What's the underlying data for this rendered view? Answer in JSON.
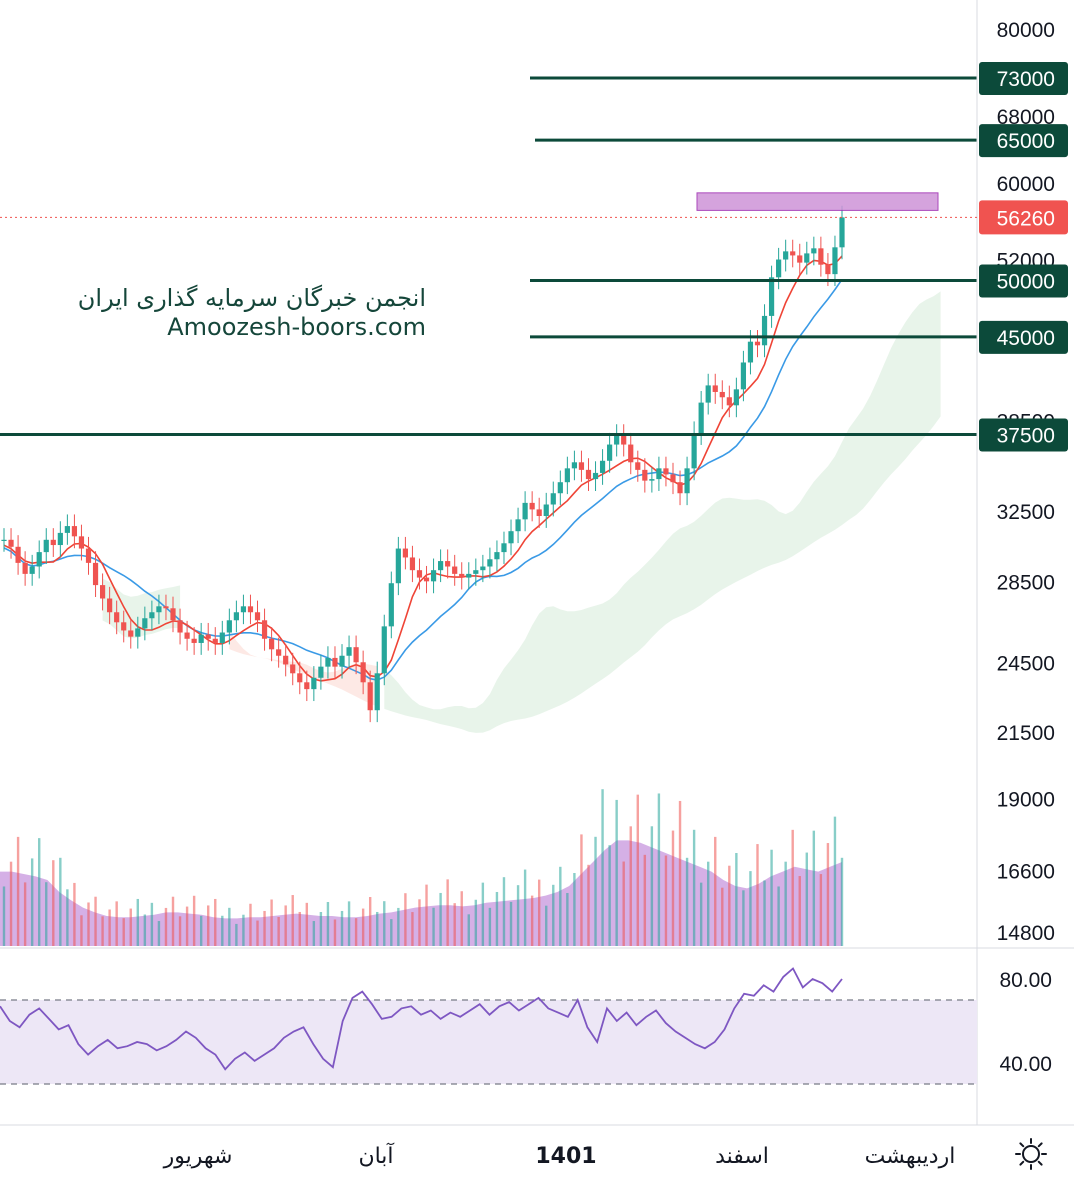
{
  "watermark": {
    "line1": "انجمن خبرگان سرمایه گذاری ایران",
    "line2": "Amoozesh-boors.com"
  },
  "colors": {
    "level_line": "#0c4a3a",
    "price_label": "#f05350",
    "bull": "#26a69a",
    "bear": "#ef5350",
    "ma_fast": "#ef4436",
    "ma_slow": "#3a9ae6",
    "volume_area": "#b36fd1",
    "rsi_line": "#7e57c2",
    "rsi_band": "#ede7f6",
    "cloud_green": "#e6f3e8",
    "cloud_red": "#fde5e1",
    "zone": "#ce93d8"
  },
  "chart_data": {
    "type": "candlestick",
    "price_axis": {
      "scale": "log",
      "ticks": [
        "80000",
        "68000",
        "60000",
        "52000",
        "38500",
        "32500",
        "28500",
        "24500",
        "21500",
        "19000",
        "16600",
        "14800"
      ]
    },
    "horizontal_levels": [
      {
        "value": 73000,
        "label": "73000"
      },
      {
        "value": 65000,
        "label": "65000"
      },
      {
        "value": 50000,
        "label": "50000"
      },
      {
        "value": 45000,
        "label": "45000"
      },
      {
        "value": 37500,
        "label": "37500"
      }
    ],
    "last_price": {
      "value": 56260,
      "label": "56260"
    },
    "resistance_zone": {
      "from": 57000,
      "to": 58900
    },
    "closes": [
      30800,
      30400,
      29500,
      28900,
      29300,
      30100,
      30800,
      30500,
      31200,
      31600,
      31000,
      30300,
      29500,
      28300,
      27600,
      26900,
      26400,
      26000,
      25700,
      26100,
      26600,
      26900,
      27200,
      27100,
      26500,
      25900,
      25600,
      25400,
      25800,
      25600,
      25400,
      25900,
      26500,
      26900,
      27200,
      26900,
      26500,
      25600,
      25100,
      24800,
      24400,
      24000,
      23600,
      23300,
      23800,
      24300,
      24700,
      24300,
      24800,
      25200,
      24500,
      23600,
      22400,
      24000,
      26200,
      28400,
      30300,
      29800,
      29100,
      28700,
      28500,
      29100,
      29600,
      29300,
      28900,
      28700,
      28900,
      29100,
      29300,
      29700,
      30100,
      30600,
      31300,
      32000,
      33000,
      32600,
      32200,
      32900,
      33600,
      34300,
      35200,
      35600,
      35100,
      34500,
      34900,
      35700,
      36800,
      37400,
      36800,
      35600,
      35100,
      34400,
      34500,
      35200,
      34800,
      34300,
      33600,
      35200,
      37600,
      39800,
      41100,
      40600,
      40200,
      39600,
      40800,
      42900,
      44600,
      44300,
      46800,
      50300,
      52000,
      52800,
      52400,
      51700,
      52600,
      53100,
      51500,
      50600,
      53200,
      56260
    ],
    "volume_area_levels": [
      0.62,
      0.62,
      0.6,
      0.58,
      0.55,
      0.45,
      0.38,
      0.32,
      0.28,
      0.25,
      0.24,
      0.24,
      0.25,
      0.26,
      0.28,
      0.28,
      0.27,
      0.26,
      0.24,
      0.23,
      0.23,
      0.24,
      0.24,
      0.25,
      0.26,
      0.27,
      0.26,
      0.25,
      0.25,
      0.24,
      0.24,
      0.25,
      0.27,
      0.28,
      0.3,
      0.32,
      0.33,
      0.34,
      0.34,
      0.33,
      0.34,
      0.36,
      0.37,
      0.38,
      0.39,
      0.4,
      0.42,
      0.45,
      0.5,
      0.6,
      0.7,
      0.8,
      0.88,
      0.88,
      0.86,
      0.82,
      0.78,
      0.74,
      0.7,
      0.66,
      0.62,
      0.55,
      0.5,
      0.48,
      0.52,
      0.58,
      0.62,
      0.66,
      0.64,
      0.62,
      0.66,
      0.7
    ],
    "rsi": {
      "levels": [
        70,
        30
      ],
      "ticks": [
        "80.00",
        "40.00"
      ],
      "values": [
        67,
        60,
        57,
        63,
        66,
        61,
        56,
        58,
        49,
        44,
        48,
        51,
        47,
        48,
        50,
        49,
        46,
        48,
        51,
        55,
        52,
        47,
        44,
        37,
        42,
        45,
        41,
        44,
        47,
        52,
        55,
        57,
        49,
        42,
        38,
        60,
        71,
        74,
        68,
        61,
        62,
        66,
        67,
        63,
        65,
        61,
        64,
        62,
        65,
        68,
        63,
        67,
        69,
        65,
        68,
        71,
        66,
        64,
        62,
        70,
        57,
        50,
        66,
        60,
        64,
        58,
        62,
        65,
        59,
        55,
        52,
        49,
        47,
        50,
        56,
        66,
        73,
        72,
        77,
        74,
        81,
        85,
        76,
        80,
        78,
        74,
        80
      ]
    },
    "time_axis": [
      "شهریور",
      "آبان",
      "1401",
      "اسفند",
      "اردیبهشت"
    ]
  }
}
